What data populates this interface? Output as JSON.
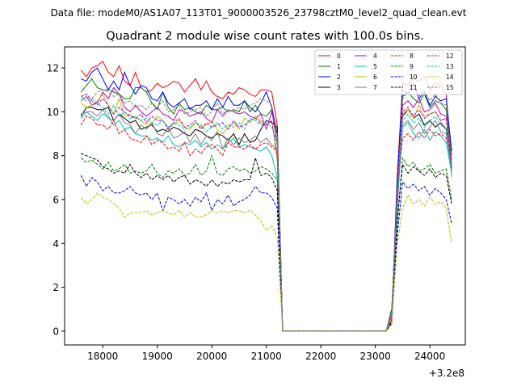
{
  "chart_data": {
    "type": "line",
    "suptitle": "Data file: modeM0/AS1A07_113T01_9000003526_23798cztM0_level2_quad_clean.evt",
    "title": "Quadrant 2 module wise count rates with 100.0s bins.",
    "xlabel": "",
    "ylabel": "",
    "x_offset_label": "+3.2e8",
    "xlim": [
      17300,
      24650
    ],
    "ylim": [
      -0.63,
      12.96
    ],
    "xticks": [
      18000,
      19000,
      20000,
      21000,
      22000,
      23000,
      24000
    ],
    "yticks": [
      0,
      2,
      4,
      6,
      8,
      10,
      12
    ],
    "grid": false,
    "legend_position": "top-right",
    "legend_columns": 4,
    "x": [
      17600,
      17700,
      17800,
      17900,
      18000,
      18100,
      18200,
      18300,
      18400,
      18500,
      18600,
      18700,
      18800,
      18900,
      19000,
      19100,
      19200,
      19300,
      19400,
      19500,
      19600,
      19700,
      19800,
      19900,
      20000,
      20100,
      20200,
      20300,
      20400,
      20500,
      20600,
      20700,
      20800,
      20900,
      21000,
      21100,
      21200,
      21300,
      21400,
      21500,
      21600,
      21700,
      21800,
      21900,
      22000,
      22100,
      22200,
      22300,
      22400,
      22500,
      22600,
      22700,
      22800,
      22900,
      23000,
      23100,
      23200,
      23300,
      23400,
      23500,
      23600,
      23700,
      23800,
      23900,
      24000,
      24100,
      24200,
      24300,
      24400
    ],
    "series": [
      {
        "name": "0",
        "color": "#ff0000",
        "dash": false,
        "values": [
          11.9,
          11.6,
          12.0,
          12.1,
          12.3,
          11.8,
          11.6,
          12.1,
          11.4,
          11.2,
          11.8,
          11.1,
          10.9,
          11.0,
          11.3,
          11.1,
          11.2,
          11.4,
          11.3,
          10.9,
          11.2,
          11.5,
          11.0,
          11.4,
          10.9,
          10.7,
          10.6,
          10.9,
          10.8,
          11.1,
          11.0,
          10.8,
          10.7,
          11.0,
          11.0,
          10.9,
          9.4,
          0,
          0,
          0,
          0,
          0,
          0,
          0,
          0,
          0,
          0,
          0,
          0,
          0,
          0,
          0,
          0,
          0,
          0,
          0,
          0,
          0.5,
          7.0,
          11.3,
          11.2,
          11.5,
          11.4,
          11.6,
          11.0,
          11.3,
          11.2,
          10.8,
          7.4
        ]
      },
      {
        "name": "1",
        "color": "#008000",
        "dash": false,
        "values": [
          10.9,
          11.2,
          11.5,
          11.1,
          11.0,
          11.0,
          10.9,
          10.8,
          10.6,
          10.6,
          11.1,
          11.1,
          10.9,
          10.4,
          10.1,
          10.9,
          10.2,
          9.9,
          10.4,
          10.1,
          10.2,
          10.0,
          9.9,
          10.3,
          10.1,
          10.1,
          10.2,
          10.0,
          10.1,
          10.0,
          10.5,
          10.0,
          10.3,
          9.9,
          9.8,
          10.1,
          8.5,
          0,
          0,
          0,
          0,
          0,
          0,
          0,
          0,
          0,
          0,
          0,
          0,
          0,
          0,
          0,
          0,
          0,
          0,
          0,
          0,
          0.8,
          6.5,
          10.7,
          10.9,
          10.6,
          10.4,
          10.8,
          10.2,
          10.5,
          10.4,
          10.1,
          8.0
        ]
      },
      {
        "name": "2",
        "color": "#0000ff",
        "dash": false,
        "values": [
          11.5,
          11.4,
          11.8,
          12.0,
          11.5,
          11.0,
          11.4,
          11.0,
          11.8,
          11.2,
          10.8,
          11.2,
          11.1,
          10.6,
          10.5,
          10.9,
          10.4,
          10.2,
          10.4,
          10.6,
          10.1,
          10.3,
          10.3,
          10.5,
          10.1,
          10.6,
          10.2,
          10.7,
          10.3,
          10.3,
          10.5,
          10.2,
          10.0,
          10.4,
          10.9,
          10.2,
          9.0,
          0,
          0,
          0,
          0,
          0,
          0,
          0,
          0,
          0,
          0,
          0,
          0,
          0,
          0,
          0,
          0,
          0,
          0,
          0,
          0,
          0.6,
          6.8,
          11.0,
          10.8,
          11.3,
          10.6,
          10.9,
          10.3,
          10.7,
          10.5,
          10.6,
          8.2
        ]
      },
      {
        "name": "3",
        "color": "#000000",
        "dash": false,
        "values": [
          9.8,
          10.2,
          10.2,
          10.1,
          10.1,
          10.2,
          9.6,
          9.9,
          9.7,
          9.5,
          9.6,
          9.2,
          9.3,
          9.4,
          9.1,
          9.2,
          9.1,
          9.3,
          9.2,
          9.0,
          8.9,
          9.2,
          9.1,
          8.9,
          8.8,
          9.0,
          8.9,
          8.7,
          9.0,
          8.5,
          9.0,
          8.6,
          8.7,
          9.2,
          9.6,
          9.5,
          9.3,
          0,
          0,
          0,
          0,
          0,
          0,
          0,
          0,
          0,
          0,
          0,
          0,
          0,
          0,
          0,
          0,
          0,
          0,
          0,
          0,
          1.0,
          5.5,
          9.8,
          10.1,
          9.7,
          9.9,
          9.4,
          9.6,
          9.3,
          9.5,
          9.2,
          7.8
        ]
      },
      {
        "name": "4",
        "color": "#bf00bf",
        "dash": false,
        "values": [
          10.5,
          10.7,
          10.3,
          10.4,
          10.9,
          10.6,
          11.1,
          10.8,
          10.2,
          10.0,
          10.3,
          10.0,
          9.8,
          10.0,
          10.2,
          9.9,
          9.8,
          9.6,
          10.1,
          10.0,
          9.8,
          9.9,
          10.0,
          9.7,
          9.5,
          10.1,
          9.8,
          10.1,
          10.0,
          9.9,
          10.0,
          9.8,
          9.7,
          9.9,
          9.2,
          10.0,
          8.9,
          0,
          0,
          0,
          0,
          0,
          0,
          0,
          0,
          0,
          0,
          0,
          0,
          0,
          0,
          0,
          0,
          0,
          0,
          0,
          0,
          0.7,
          6.0,
          10.3,
          10.5,
          10.2,
          10.6,
          10.0,
          10.1,
          10.4,
          9.9,
          9.8,
          7.6
        ]
      },
      {
        "name": "5",
        "color": "#00bfbf",
        "dash": false,
        "values": [
          9.7,
          10.0,
          9.8,
          9.6,
          9.9,
          9.8,
          9.4,
          9.6,
          9.2,
          9.3,
          9.0,
          8.9,
          8.9,
          8.7,
          8.8,
          8.6,
          8.9,
          8.5,
          8.4,
          8.6,
          8.5,
          8.7,
          8.4,
          8.6,
          8.3,
          8.5,
          8.3,
          8.6,
          8.8,
          8.4,
          8.5,
          8.4,
          8.3,
          8.2,
          8.4,
          8.0,
          7.0,
          0,
          0,
          0,
          0,
          0,
          0,
          0,
          0,
          0,
          0,
          0,
          0,
          0,
          0,
          0,
          0,
          0,
          0,
          0,
          0,
          0.9,
          5.8,
          9.3,
          9.5,
          9.0,
          8.8,
          9.2,
          8.7,
          9.1,
          8.9,
          8.6,
          7.2
        ]
      },
      {
        "name": "6",
        "color": "#bfbf00",
        "dash": false,
        "values": [
          10.4,
          10.2,
          10.3,
          10.5,
          10.8,
          10.3,
          9.9,
          10.6,
          9.8,
          9.9,
          9.7,
          9.6,
          9.4,
          9.5,
          9.8,
          9.6,
          9.3,
          9.4,
          9.6,
          9.3,
          9.2,
          9.5,
          9.3,
          9.4,
          9.6,
          9.2,
          9.0,
          9.3,
          9.5,
          9.2,
          9.7,
          9.5,
          9.8,
          9.6,
          9.4,
          9.6,
          7.8,
          0,
          0,
          0,
          0,
          0,
          0,
          0,
          0,
          0,
          0,
          0,
          0,
          0,
          0,
          0,
          0,
          0,
          0,
          0,
          0,
          0.6,
          6.2,
          9.9,
          10.1,
          9.7,
          10.3,
          9.8,
          9.9,
          10.0,
          9.6,
          9.7,
          7.0
        ]
      },
      {
        "name": "7",
        "color": "#808080",
        "dash": false,
        "values": [
          9.9,
          10.0,
          10.0,
          9.8,
          10.1,
          9.7,
          9.6,
          9.9,
          9.5,
          9.4,
          9.0,
          9.4,
          9.2,
          9.5,
          9.0,
          8.9,
          9.3,
          8.8,
          8.9,
          9.1,
          8.6,
          9.0,
          8.5,
          8.9,
          8.7,
          9.1,
          8.3,
          8.8,
          8.5,
          8.8,
          8.6,
          8.7,
          8.9,
          8.6,
          8.8,
          8.5,
          8.3,
          0,
          0,
          0,
          0,
          0,
          0,
          0,
          0,
          0,
          0,
          0,
          0,
          0,
          0,
          0,
          0,
          0,
          0,
          0,
          0,
          0.8,
          5.9,
          9.4,
          9.6,
          9.2,
          9.5,
          9.0,
          9.3,
          9.6,
          9.1,
          9.0,
          7.3
        ]
      },
      {
        "name": "8",
        "color": "#ff0000",
        "dash": true,
        "values": [
          9.4,
          9.8,
          9.7,
          9.4,
          9.4,
          9.2,
          9.6,
          9.0,
          9.2,
          8.8,
          8.7,
          8.6,
          8.9,
          8.5,
          8.7,
          8.6,
          8.3,
          8.4,
          8.2,
          8.6,
          8.0,
          8.3,
          8.1,
          8.4,
          8.5,
          8.3,
          8.0,
          8.6,
          8.4,
          8.4,
          8.3,
          8.5,
          8.3,
          8.5,
          8.6,
          8.4,
          8.2,
          0,
          0,
          0,
          0,
          0,
          0,
          0,
          0,
          0,
          0,
          0,
          0,
          0,
          0,
          0,
          0,
          0,
          0,
          0,
          0,
          0.5,
          6.4,
          8.8,
          9.0,
          8.7,
          9.1,
          8.8,
          9.2,
          8.9,
          9.0,
          8.8,
          7.8
        ]
      },
      {
        "name": "9",
        "color": "#008000",
        "dash": true,
        "values": [
          7.9,
          7.7,
          7.8,
          7.6,
          7.4,
          7.7,
          7.3,
          7.4,
          7.6,
          7.2,
          7.3,
          7.2,
          7.3,
          7.6,
          7.2,
          7.0,
          7.3,
          7.2,
          7.4,
          7.1,
          7.2,
          7.6,
          7.1,
          7.3,
          8.0,
          7.2,
          7.1,
          7.4,
          7.5,
          7.3,
          7.4,
          7.2,
          7.3,
          7.5,
          7.4,
          7.2,
          6.9,
          0,
          0,
          0,
          0,
          0,
          0,
          0,
          0,
          0,
          0,
          0,
          0,
          0,
          0,
          0,
          0,
          0,
          0,
          0,
          0,
          0.4,
          4.8,
          7.9,
          7.5,
          7.7,
          7.3,
          7.4,
          7.6,
          7.2,
          7.3,
          7.4,
          6.0
        ]
      },
      {
        "name": "10",
        "color": "#0000ff",
        "dash": true,
        "values": [
          7.1,
          6.6,
          7.0,
          6.8,
          6.4,
          6.6,
          6.3,
          6.3,
          6.4,
          6.6,
          6.3,
          6.2,
          6.3,
          6.0,
          6.3,
          5.5,
          6.1,
          6.0,
          5.8,
          6.0,
          5.7,
          6.1,
          5.9,
          6.3,
          5.5,
          6.0,
          5.8,
          6.2,
          5.7,
          5.9,
          6.0,
          6.2,
          6.6,
          6.3,
          6.3,
          6.1,
          5.6,
          0,
          0,
          0,
          0,
          0,
          0,
          0,
          0,
          0,
          0,
          0,
          0,
          0,
          0,
          0,
          0,
          0,
          0,
          0,
          0,
          0.3,
          4.3,
          6.8,
          6.5,
          6.7,
          6.4,
          6.6,
          6.2,
          6.5,
          6.3,
          6.0,
          4.9
        ]
      },
      {
        "name": "11",
        "color": "#000000",
        "dash": true,
        "values": [
          8.1,
          8.0,
          7.9,
          7.8,
          7.5,
          7.4,
          7.2,
          7.3,
          7.2,
          7.6,
          7.2,
          7.0,
          7.2,
          6.9,
          7.1,
          6.9,
          7.1,
          6.8,
          7.0,
          7.1,
          6.7,
          6.9,
          6.8,
          6.6,
          6.9,
          6.6,
          6.8,
          6.7,
          6.9,
          6.8,
          6.9,
          6.9,
          7.9,
          7.1,
          7.2,
          7.0,
          6.4,
          0,
          0,
          0,
          0,
          0,
          0,
          0,
          0,
          0,
          0,
          0,
          0,
          0,
          0,
          0,
          0,
          0,
          0,
          0,
          0,
          0.4,
          5.0,
          7.6,
          7.2,
          7.5,
          7.3,
          7.1,
          7.4,
          7.0,
          7.2,
          7.1,
          5.8
        ]
      },
      {
        "name": "12",
        "color": "#bf00bf",
        "dash": true,
        "values": [
          10.7,
          10.8,
          10.5,
          10.3,
          10.6,
          10.3,
          9.9,
          10.2,
          10.0,
          9.8,
          9.7,
          9.9,
          9.5,
          9.8,
          9.6,
          9.6,
          9.2,
          9.5,
          9.7,
          9.3,
          9.4,
          9.6,
          9.2,
          9.5,
          9.3,
          9.4,
          9.5,
          9.2,
          9.6,
          9.3,
          9.4,
          9.6,
          9.7,
          9.5,
          9.4,
          9.6,
          8.0,
          0,
          0,
          0,
          0,
          0,
          0,
          0,
          0,
          0,
          0,
          0,
          0,
          0,
          0,
          0,
          0,
          0,
          0,
          0,
          0,
          0.7,
          6.1,
          10.0,
          10.2,
          9.8,
          10.1,
          9.7,
          9.9,
          10.0,
          9.6,
          9.7,
          7.4
        ]
      },
      {
        "name": "13",
        "color": "#00bfbf",
        "dash": true,
        "values": [
          10.7,
          10.5,
          10.6,
          10.4,
          10.2,
          9.9,
          10.3,
          9.8,
          10.0,
          9.7,
          9.8,
          9.6,
          9.7,
          9.5,
          9.4,
          9.6,
          9.3,
          9.5,
          9.4,
          9.2,
          9.3,
          9.5,
          9.4,
          9.1,
          9.3,
          9.5,
          9.2,
          9.4,
          9.3,
          9.5,
          9.2,
          9.7,
          9.6,
          9.4,
          9.5,
          9.3,
          8.6,
          0,
          0,
          0,
          0,
          0,
          0,
          0,
          0,
          0,
          0,
          0,
          0,
          0,
          0,
          0,
          0,
          0,
          0,
          0,
          0,
          0.6,
          5.7,
          9.6,
          9.9,
          9.5,
          9.7,
          9.3,
          9.6,
          9.8,
          9.4,
          9.2,
          7.1
        ]
      },
      {
        "name": "14",
        "color": "#bfbf00",
        "dash": true,
        "values": [
          6.1,
          5.8,
          6.0,
          6.3,
          6.1,
          6.0,
          5.8,
          5.6,
          5.2,
          5.4,
          5.4,
          5.4,
          5.5,
          5.3,
          5.4,
          5.5,
          5.4,
          5.3,
          5.5,
          5.2,
          5.4,
          5.2,
          5.2,
          5.3,
          5.5,
          5.4,
          5.5,
          5.4,
          5.5,
          5.5,
          5.4,
          5.5,
          5.3,
          5.0,
          4.6,
          4.8,
          4.3,
          0,
          0,
          0,
          0,
          0,
          0,
          0,
          0,
          0,
          0,
          0,
          0,
          0,
          0,
          0,
          0,
          0,
          0,
          0,
          0,
          0.3,
          3.9,
          5.6,
          6.2,
          5.8,
          6.0,
          5.7,
          6.1,
          5.8,
          5.9,
          5.6,
          4.0
        ]
      },
      {
        "name": "15",
        "color": "#808080",
        "dash": true,
        "values": [
          10.5,
          10.7,
          10.6,
          10.9,
          11.0,
          10.9,
          10.7,
          10.8,
          10.4,
          10.5,
          10.2,
          10.3,
          10.1,
          10.4,
          10.2,
          10.5,
          10.0,
          10.1,
          10.3,
          9.9,
          10.0,
          10.1,
          10.2,
          9.8,
          10.0,
          10.4,
          9.9,
          10.1,
          10.0,
          10.2,
          10.1,
          10.3,
          10.4,
          10.6,
          10.5,
          10.3,
          9.0,
          0,
          0,
          0,
          0,
          0,
          0,
          0,
          0,
          0,
          0,
          0,
          0,
          0,
          0,
          0,
          0,
          0,
          0,
          0,
          0,
          0.8,
          6.3,
          10.6,
          10.9,
          11.4,
          10.7,
          11.0,
          10.5,
          10.8,
          10.4,
          10.3,
          7.6
        ]
      }
    ]
  }
}
